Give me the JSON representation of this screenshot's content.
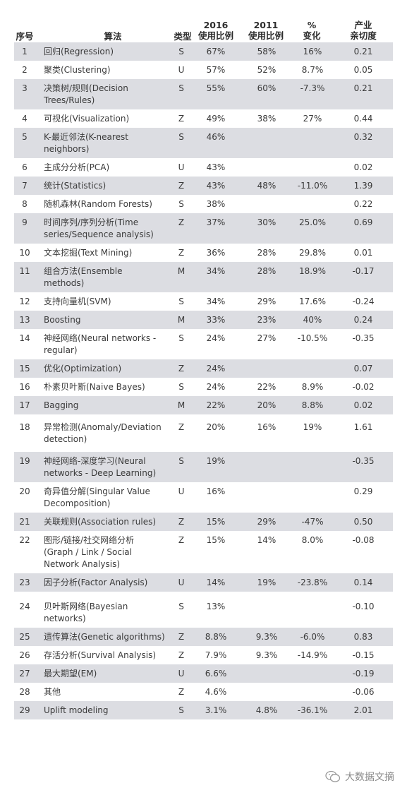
{
  "header": {
    "no": "序号",
    "algorithm": "算法",
    "type": "类型",
    "usage_2016": [
      "2016",
      "使用比例"
    ],
    "usage_2011": [
      "2011",
      "使用比例"
    ],
    "change": [
      "%",
      "变化"
    ],
    "industry": [
      "产业",
      "亲切度"
    ]
  },
  "rows": [
    {
      "no": "1",
      "alg": "回归(Regression)",
      "type": "S",
      "u16": "67%",
      "u11": "58%",
      "chg": "16%",
      "ind": "0.21"
    },
    {
      "no": "2",
      "alg": "聚类(Clustering)",
      "type": "U",
      "u16": "57%",
      "u11": "52%",
      "chg": "8.7%",
      "ind": "0.05"
    },
    {
      "no": "3",
      "alg": "决策树/规则(Decision\nTrees/Rules)",
      "type": "S",
      "u16": "55%",
      "u11": "60%",
      "chg": "-7.3%",
      "ind": "0.21"
    },
    {
      "no": "4",
      "alg": "可视化(Visualization)",
      "type": "Z",
      "u16": "49%",
      "u11": "38%",
      "chg": "27%",
      "ind": "0.44"
    },
    {
      "no": "5",
      "alg": "K-最近邻法(K-nearest\nneighbors)",
      "type": "S",
      "u16": "46%",
      "u11": "",
      "chg": "",
      "ind": "0.32"
    },
    {
      "no": "6",
      "alg": "主成分分析(PCA)",
      "type": "U",
      "u16": "43%",
      "u11": "",
      "chg": "",
      "ind": "0.02"
    },
    {
      "no": "7",
      "alg": "统计(Statistics)",
      "type": "Z",
      "u16": "43%",
      "u11": "48%",
      "chg": "-11.0%",
      "ind": "1.39"
    },
    {
      "no": "8",
      "alg": "随机森林(Random Forests)",
      "type": "S",
      "u16": "38%",
      "u11": "",
      "chg": "",
      "ind": "0.22"
    },
    {
      "no": "9",
      "alg": "时间序列/序列分析(Time\nseries/Sequence analysis)",
      "type": "Z",
      "u16": "37%",
      "u11": "30%",
      "chg": "25.0%",
      "ind": "0.69"
    },
    {
      "no": "10",
      "alg": "文本挖掘(Text Mining)",
      "type": "Z",
      "u16": "36%",
      "u11": "28%",
      "chg": "29.8%",
      "ind": "0.01"
    },
    {
      "no": "11",
      "alg": "组合方法(Ensemble\nmethods)",
      "type": "M",
      "u16": "34%",
      "u11": "28%",
      "chg": "18.9%",
      "ind": "-0.17"
    },
    {
      "no": "12",
      "alg": "支持向量机(SVM)",
      "type": "S",
      "u16": "34%",
      "u11": "29%",
      "chg": "17.6%",
      "ind": "-0.24"
    },
    {
      "no": "13",
      "alg": "Boosting",
      "type": "M",
      "u16": "33%",
      "u11": "23%",
      "chg": "40%",
      "ind": "0.24"
    },
    {
      "no": "14",
      "alg": "神经网络(Neural networks -\nregular)",
      "type": "S",
      "u16": "24%",
      "u11": "27%",
      "chg": "-10.5%",
      "ind": "-0.35"
    },
    {
      "no": "15",
      "alg": "优化(Optimization)",
      "type": "Z",
      "u16": "24%",
      "u11": "",
      "chg": "",
      "ind": "0.07"
    },
    {
      "no": "16",
      "alg": "朴素贝叶斯(Naive Bayes)",
      "type": "S",
      "u16": "24%",
      "u11": "22%",
      "chg": "8.9%",
      "ind": "-0.02"
    },
    {
      "no": "17",
      "alg": "Bagging",
      "type": "M",
      "u16": "22%",
      "u11": "20%",
      "chg": "8.8%",
      "ind": "0.02"
    },
    {
      "no": "18",
      "alg": "异常检测(Anomaly/Deviation\ndetection)",
      "type": "Z",
      "u16": "20%",
      "u11": "16%",
      "chg": "19%",
      "ind": "1.61"
    },
    {
      "no": "19",
      "alg": "神经网络-深度学习(Neural\nnetworks - Deep Learning)",
      "type": "S",
      "u16": "19%",
      "u11": "",
      "chg": "",
      "ind": "-0.35"
    },
    {
      "no": "20",
      "alg": "奇异值分解(Singular Value\nDecomposition)",
      "type": "U",
      "u16": "16%",
      "u11": "",
      "chg": "",
      "ind": "0.29"
    },
    {
      "no": "21",
      "alg": "关联规则(Association rules)",
      "type": "Z",
      "u16": "15%",
      "u11": "29%",
      "chg": "-47%",
      "ind": "0.50"
    },
    {
      "no": "22",
      "alg": "图形/链接/社交网络分析\n(Graph / Link / Social\nNetwork Analysis)",
      "type": "Z",
      "u16": "15%",
      "u11": "14%",
      "chg": "8.0%",
      "ind": "-0.08"
    },
    {
      "no": "23",
      "alg": "因子分析(Factor Analysis)",
      "type": "U",
      "u16": "14%",
      "u11": "19%",
      "chg": "-23.8%",
      "ind": "0.14"
    },
    {
      "no": "24",
      "alg": "贝叶斯网络(Bayesian\nnetworks)",
      "type": "S",
      "u16": "13%",
      "u11": "",
      "chg": "",
      "ind": "-0.10"
    },
    {
      "no": "25",
      "alg": "遗传算法(Genetic algorithms)",
      "type": "Z",
      "u16": "8.8%",
      "u11": "9.3%",
      "chg": "-6.0%",
      "ind": "0.83"
    },
    {
      "no": "26",
      "alg": "存活分析(Survival Analysis)",
      "type": "Z",
      "u16": "7.9%",
      "u11": "9.3%",
      "chg": "-14.9%",
      "ind": "-0.15"
    },
    {
      "no": "27",
      "alg": "最大期望(EM)",
      "type": "U",
      "u16": "6.6%",
      "u11": "",
      "chg": "",
      "ind": "-0.19"
    },
    {
      "no": "28",
      "alg": "其他",
      "type": "Z",
      "u16": "4.6%",
      "u11": "",
      "chg": "",
      "ind": "-0.06"
    },
    {
      "no": "29",
      "alg": "Uplift modeling",
      "type": "S",
      "u16": "3.1%",
      "u11": "4.8%",
      "chg": "-36.1%",
      "ind": "2.01"
    }
  ],
  "watermark": {
    "text": "大数据文摘",
    "icon": "wechat-logo-icon"
  }
}
